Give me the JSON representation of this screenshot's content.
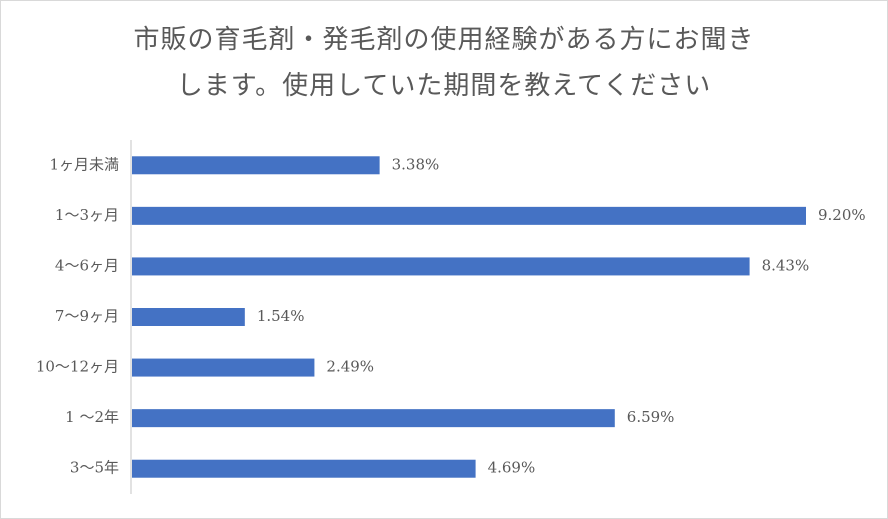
{
  "chart_data": {
    "type": "bar",
    "orientation": "horizontal",
    "title_lines": [
      "市販の育毛剤・発毛剤の使用経験がある方にお聞き",
      "します。使用していた期間を教えてください"
    ],
    "categories": [
      "1ヶ月未満",
      "1〜3ヶ月",
      "4〜6ヶ月",
      "7〜9ヶ月",
      "10〜12ヶ月",
      "1 〜2年",
      "3〜5年"
    ],
    "values": [
      3.38,
      9.2,
      8.43,
      1.54,
      2.49,
      6.59,
      4.69
    ],
    "data_labels": [
      "3.38%",
      "9.20%",
      "8.43%",
      "1.54%",
      "2.49%",
      "6.59%",
      "4.69%"
    ],
    "xlim": [
      0,
      9.2
    ],
    "grid": false,
    "legend": "none",
    "bar_color": "#4472c4",
    "axis_color": "#d9d9d9",
    "text_color": "#595959"
  }
}
